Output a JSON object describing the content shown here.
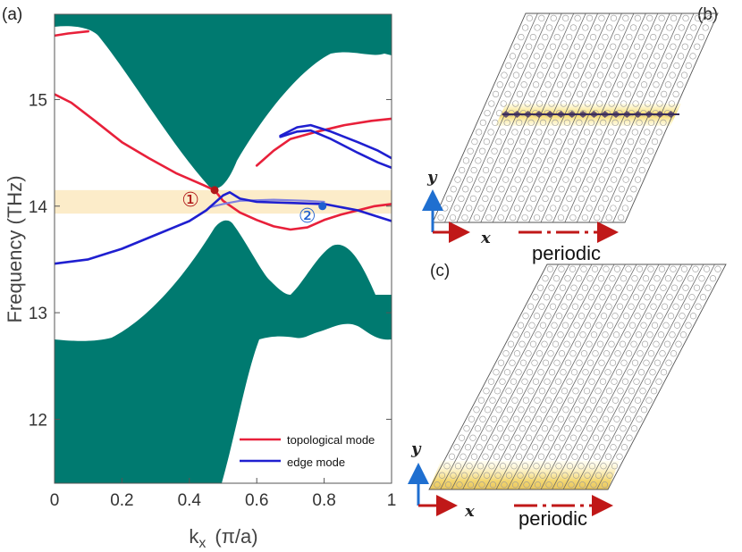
{
  "panels": {
    "a": {
      "label": "(a)"
    },
    "b": {
      "label": "(b)",
      "x_axis": "x",
      "y_axis": "y",
      "periodic_label": "periodic"
    },
    "c": {
      "label": "(c)",
      "x_axis": "x",
      "y_axis": "y",
      "periodic_label": "periodic"
    }
  },
  "chart_data": {
    "type": "line",
    "ylabel": "Frequency  (THz)",
    "xlabel_main": "k",
    "xlabel_sub": "x",
    "xlabel_unit": "(π/a)",
    "xlim": [
      0,
      1
    ],
    "ylim": [
      11.4,
      15.8
    ],
    "xticks": [
      "0",
      "0.2",
      "0.4",
      "0.6",
      "0.8",
      "1"
    ],
    "yticks": [
      "12",
      "13",
      "14",
      "15"
    ],
    "highlight_band": [
      13.93,
      14.15
    ],
    "bulk_color": "#007a70",
    "legend": [
      {
        "name": "topological mode",
        "color": "#e8203a"
      },
      {
        "name": "edge mode",
        "color": "#1f1fd0"
      }
    ],
    "markers": [
      {
        "label": "①",
        "x": 0.475,
        "y": 14.15,
        "color": "#b01818"
      },
      {
        "label": "②",
        "x": 0.795,
        "y": 14.0,
        "color": "#1f5fd0"
      }
    ],
    "series": [
      {
        "name": "topological mode",
        "color": "#e8203a",
        "segments": [
          [
            [
              0,
              15.05
            ],
            [
              0.05,
              14.97
            ],
            [
              0.12,
              14.8
            ],
            [
              0.2,
              14.6
            ],
            [
              0.28,
              14.45
            ],
            [
              0.36,
              14.31
            ],
            [
              0.44,
              14.2
            ],
            [
              0.475,
              14.15
            ],
            [
              0.5,
              14.05
            ],
            [
              0.55,
              13.94
            ],
            [
              0.6,
              13.87
            ],
            [
              0.65,
              13.81
            ],
            [
              0.7,
              13.78
            ],
            [
              0.75,
              13.8
            ],
            [
              0.8,
              13.87
            ],
            [
              0.85,
              13.92
            ],
            [
              0.9,
              13.96
            ],
            [
              0.95,
              14.0
            ],
            [
              1,
              14.02
            ]
          ],
          [
            [
              0,
              15.6
            ],
            [
              0.04,
              15.62
            ],
            [
              0.1,
              15.64
            ]
          ],
          [
            [
              0.6,
              14.38
            ],
            [
              0.65,
              14.52
            ],
            [
              0.7,
              14.63
            ],
            [
              0.78,
              14.7
            ],
            [
              0.86,
              14.76
            ],
            [
              0.94,
              14.8
            ],
            [
              1,
              14.82
            ]
          ],
          [
            [
              0.46,
              13.99
            ],
            [
              0.5,
              14.02
            ],
            [
              0.55,
              14.05
            ],
            [
              0.65,
              14.06
            ],
            [
              0.75,
              14.05
            ],
            [
              0.8,
              14.04
            ]
          ]
        ]
      },
      {
        "name": "edge mode",
        "color": "#1f1fd0",
        "segments": [
          [
            [
              0,
              13.46
            ],
            [
              0.1,
              13.5
            ],
            [
              0.2,
              13.6
            ],
            [
              0.3,
              13.73
            ],
            [
              0.4,
              13.86
            ],
            [
              0.45,
              13.96
            ],
            [
              0.5,
              14.1
            ],
            [
              0.52,
              14.13
            ],
            [
              0.55,
              14.07
            ],
            [
              0.6,
              14.04
            ],
            [
              0.7,
              14.03
            ],
            [
              0.8,
              14.02
            ],
            [
              0.9,
              13.96
            ],
            [
              0.95,
              13.91
            ],
            [
              1,
              13.86
            ]
          ],
          [
            [
              0.67,
              14.66
            ],
            [
              0.72,
              14.74
            ],
            [
              0.76,
              14.76
            ],
            [
              0.82,
              14.7
            ],
            [
              0.9,
              14.6
            ],
            [
              0.96,
              14.52
            ],
            [
              1,
              14.45
            ]
          ],
          [
            [
              0.67,
              14.65
            ],
            [
              0.72,
              14.7
            ],
            [
              0.76,
              14.71
            ],
            [
              0.82,
              14.63
            ],
            [
              0.9,
              14.5
            ],
            [
              0.96,
              14.41
            ],
            [
              1,
              14.36
            ]
          ]
        ]
      }
    ]
  }
}
